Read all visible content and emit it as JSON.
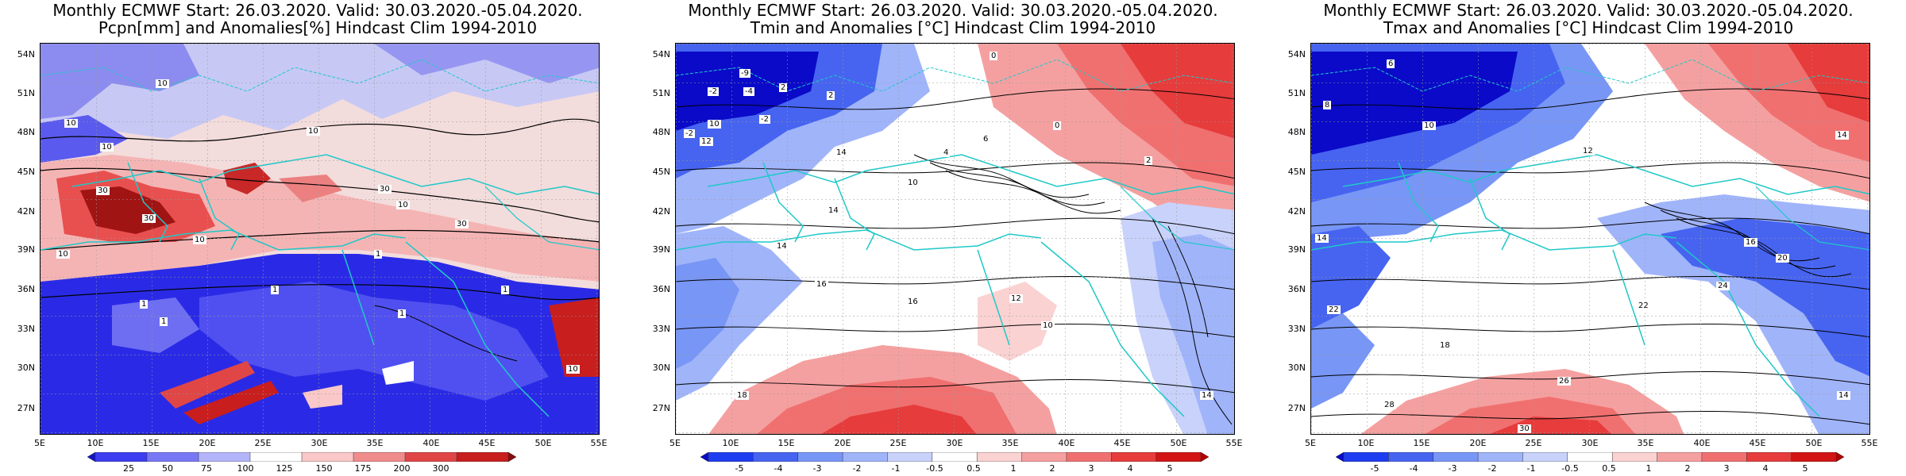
{
  "panels": [
    {
      "id": "pcpn",
      "title_line1": "Monthly ECMWF Start: 26.03.2020. Valid: 30.03.2020.-05.04.2020.",
      "title_line2": "Pcpn[mm] and Anomalies[%] Hindcast Clim 1994-2010",
      "colorbar_ticks": [
        "25",
        "50",
        "75",
        "100",
        "125",
        "150",
        "175",
        "200",
        "300"
      ],
      "colorbar_colors": [
        "#1414c8",
        "#3c3cf0",
        "#7878f5",
        "#b4b4fa",
        "#ffffff",
        "#fac8c8",
        "#f08c8c",
        "#e04646",
        "#c81e1e",
        "#8c0a0a"
      ],
      "contour_labels": [
        "10",
        "10",
        "10",
        "10",
        "30",
        "30",
        "10",
        "30",
        "10",
        "30",
        "10",
        "1",
        "1",
        "1",
        "1",
        "1",
        "10",
        "1"
      ]
    },
    {
      "id": "tmin",
      "title_line1": "Monthly ECMWF Start: 26.03.2020. Valid: 30.03.2020.-05.04.2020.",
      "title_line2": "Tmin and Anomalies [°C] Hindcast Clim 1994-2010",
      "colorbar_ticks": [
        "-5",
        "-4",
        "-3",
        "-2",
        "-1",
        "-0.5",
        "0.5",
        "1",
        "2",
        "3",
        "4",
        "5"
      ],
      "colorbar_colors": [
        "#0a0ac8",
        "#1e3cf0",
        "#4664f0",
        "#7896f5",
        "#a0b4fa",
        "#c8d2fa",
        "#ffffff",
        "#fad2d2",
        "#f5a0a0",
        "#f07070",
        "#e63c3c",
        "#d21414",
        "#b40000"
      ],
      "contour_labels": [
        "-9",
        "-2",
        "2",
        "0",
        "-2",
        "-4",
        "2",
        "-2",
        "10",
        "14",
        "12",
        "6",
        "0",
        "2",
        "4",
        "10",
        "14",
        "16",
        "14",
        "16",
        "18",
        "12",
        "10",
        "14"
      ]
    },
    {
      "id": "tmax",
      "title_line1": "Monthly ECMWF Start: 26.03.2020. Valid: 30.03.2020.-05.04.2020.",
      "title_line2": "Tmax and Anomalies [°C] Hindcast Clim 1994-2010",
      "colorbar_ticks": [
        "-5",
        "-4",
        "-3",
        "-2",
        "-1",
        "-0.5",
        "0.5",
        "1",
        "2",
        "3",
        "4",
        "5"
      ],
      "colorbar_colors": [
        "#0a0ac8",
        "#1e3cf0",
        "#4664f0",
        "#7896f5",
        "#a0b4fa",
        "#c8d2fa",
        "#ffffff",
        "#fad2d2",
        "#f5a0a0",
        "#f07070",
        "#e63c3c",
        "#d21414",
        "#b40000"
      ],
      "contour_labels": [
        "6",
        "8",
        "10",
        "12",
        "14",
        "14",
        "16",
        "20",
        "22",
        "24",
        "26",
        "28",
        "30",
        "18",
        "22",
        "14"
      ]
    }
  ],
  "lat_labels": [
    "54N",
    "51N",
    "48N",
    "45N",
    "42N",
    "39N",
    "36N",
    "33N",
    "30N",
    "27N"
  ],
  "lon_labels": [
    "5E",
    "10E",
    "15E",
    "20E",
    "25E",
    "30E",
    "35E",
    "40E",
    "45E",
    "50E",
    "55E"
  ]
}
